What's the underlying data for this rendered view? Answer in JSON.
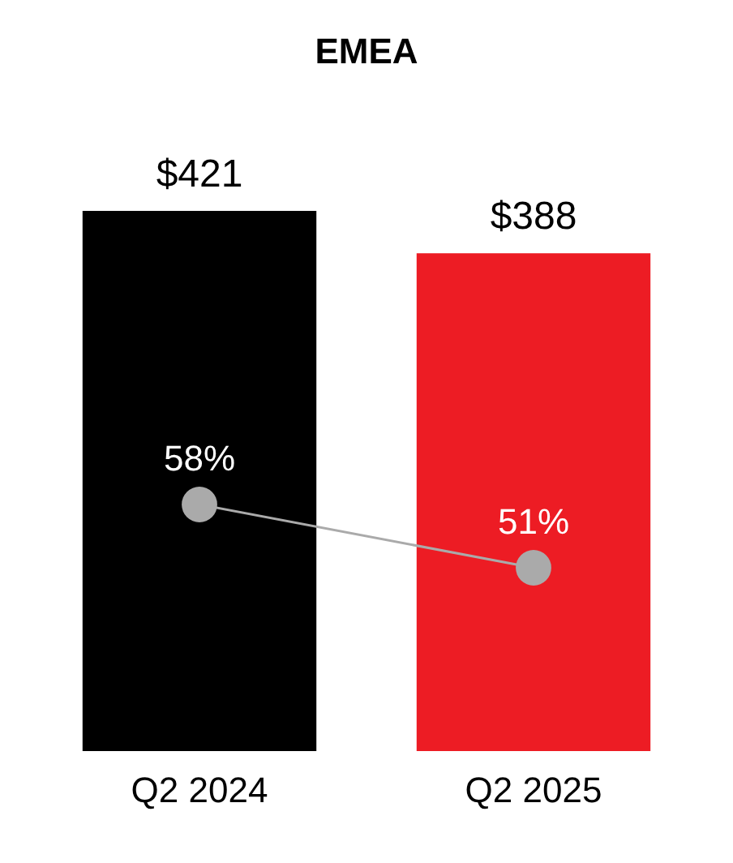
{
  "chart_data": {
    "type": "bar",
    "title": "EMEA",
    "categories": [
      "Q2 2024",
      "Q2 2025"
    ],
    "grid": false,
    "tick_labels": "x",
    "marker": "circle",
    "series": [
      {
        "colors": [
          "#000000",
          "#ed1c24"
        ],
        "values": [
          421,
          388
        ],
        "value_labels": [
          "$421",
          "$388"
        ]
      },
      {
        "type": "line",
        "axis": "y2",
        "color": "#aaaaaa",
        "values": [
          58,
          51
        ],
        "value_labels": [
          "58%",
          "51%"
        ]
      }
    ]
  }
}
